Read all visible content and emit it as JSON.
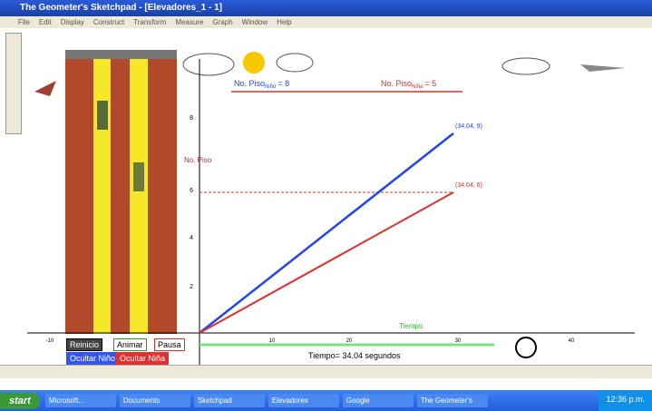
{
  "window": {
    "title": "The Geometer's Sketchpad - [Elevadores_1 - 1]",
    "menu": [
      "File",
      "Edit",
      "Display",
      "Construct",
      "Transform",
      "Measure",
      "Graph",
      "Window",
      "Help"
    ]
  },
  "sketch": {
    "boy_label": {
      "text": "No. Piso",
      "sub": "Niño",
      "value": "= 8"
    },
    "girl_label": {
      "text": "No. Piso",
      "sub": "Niña",
      "value": "= 5"
    },
    "y_axis_label": "No. Piso",
    "y_ticks": [
      "8",
      "6",
      "4",
      "2"
    ],
    "x_axis_label": "Tiempo",
    "x_ticks": [
      "-10",
      "10",
      "20",
      "30",
      "40"
    ],
    "point_blue": "(34.04, 9)",
    "point_red": "(34.04, 6)",
    "buttons": [
      "Reinicio",
      "Animar",
      "Pausa",
      "Ocultar Niño",
      "Ocultar Niña"
    ],
    "time_readout": "Tiempo= 34.04 segundos"
  },
  "taskbar": {
    "start": "start",
    "tasks": [
      "Microsoft...",
      "Documents",
      "Sketchpad",
      "Elevadores",
      "Google",
      "The Geometer's"
    ],
    "clock": "12:36 p.m."
  }
}
